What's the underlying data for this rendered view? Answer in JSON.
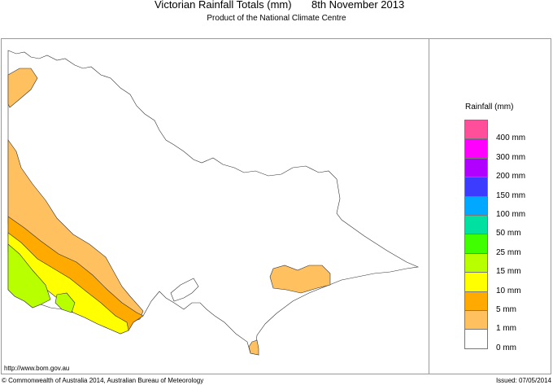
{
  "header": {
    "title": "Victorian Rainfall Totals (mm)",
    "date": "8th November 2013",
    "subtitle": "Product of the National Climate Centre"
  },
  "footer": {
    "url": "http://www.bom.gov.au",
    "copyright": "© Commonwealth of Australia 2014, Australian Bureau of Meteorology",
    "issued": "Issued: 07/05/2014"
  },
  "legend": {
    "title": "Rainfall (mm)",
    "colors": [
      "#ff4f9b",
      "#ff00ff",
      "#b000ff",
      "#3c3cff",
      "#00a8ff",
      "#00e0a0",
      "#40ff00",
      "#b8ff00",
      "#ffff00",
      "#ffaa00",
      "#ffc060",
      "#ffffff"
    ],
    "labels": [
      "400 mm",
      "300 mm",
      "200 mm",
      "150 mm",
      "100 mm",
      "50 mm",
      "25 mm",
      "15 mm",
      "10 mm",
      "5 mm",
      "1 mm",
      "0 mm"
    ]
  }
}
